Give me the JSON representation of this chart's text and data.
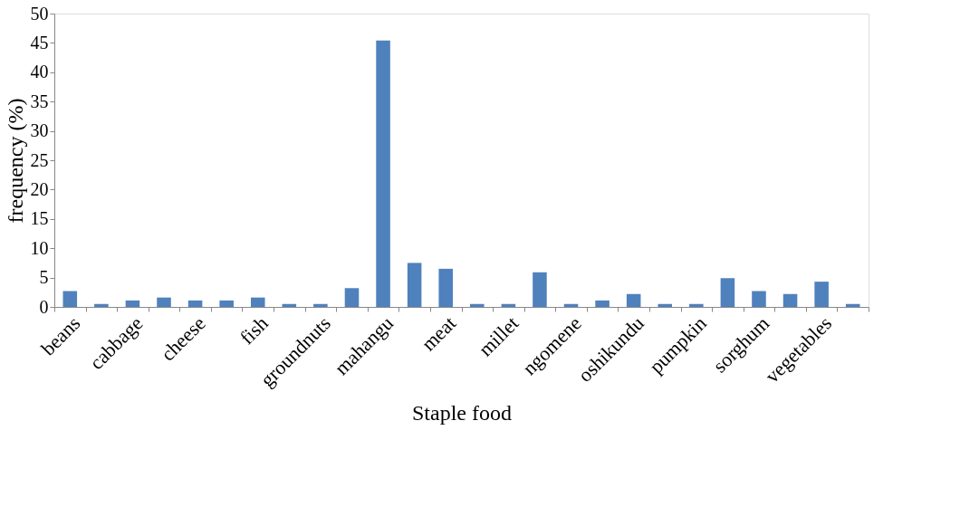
{
  "chart_data": {
    "type": "bar",
    "xlabel": "Staple food",
    "ylabel": "frequency (%)",
    "categories": [
      "beans",
      null,
      "cabbage",
      null,
      "cheese",
      null,
      "fish",
      null,
      "groundnuts",
      null,
      "mahangu",
      null,
      "meat",
      null,
      "millet",
      null,
      "ngomene",
      null,
      "oshikundu",
      null,
      "pumpkin",
      null,
      "sorghum",
      null,
      "vegetables",
      null
    ],
    "values": [
      2.7,
      0.5,
      1.1,
      1.6,
      1.1,
      1.1,
      1.6,
      0.5,
      0.5,
      3.2,
      45.4,
      7.5,
      6.5,
      0.5,
      0.5,
      5.9,
      0.5,
      1.1,
      2.2,
      0.5,
      0.5,
      4.9,
      2.7,
      2.2,
      4.3,
      0.5
    ],
    "color": "#4f81bd",
    "ylim": [
      0,
      50
    ],
    "yticks": [
      0,
      5,
      10,
      15,
      20,
      25,
      30,
      35,
      40,
      45,
      50
    ],
    "grid": false
  }
}
